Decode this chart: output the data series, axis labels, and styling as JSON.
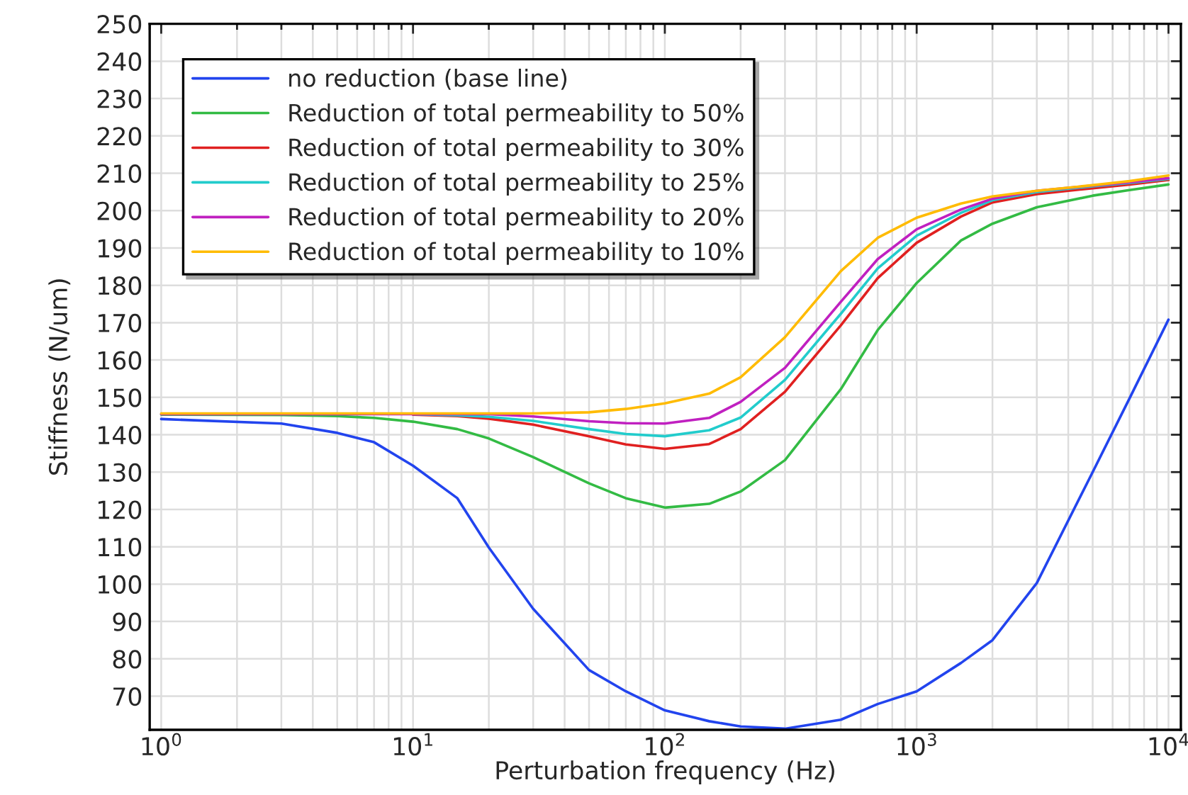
{
  "chart_data": {
    "type": "line",
    "xlabel": "Perturbation frequency (Hz)",
    "ylabel": "Stiffness (N/um)",
    "log": "x",
    "grid": true,
    "legend": "top left",
    "marker": "none",
    "line_style": "solid",
    "xlim": [
      0.9,
      11200
    ],
    "ylim": [
      61,
      250
    ],
    "xticks": [
      {
        "value": 1,
        "label": "10$^{0}$"
      },
      {
        "value": 10,
        "label": "10$^{1}$"
      },
      {
        "value": 100,
        "label": "10$^{2}$"
      },
      {
        "value": 1000,
        "label": "10$^{3}$"
      },
      {
        "value": 10000,
        "label": "10$^{4}$"
      }
    ],
    "yticks": [
      70,
      80,
      90,
      100,
      110,
      120,
      130,
      140,
      150,
      160,
      170,
      180,
      190,
      200,
      210,
      220,
      230,
      240,
      250
    ],
    "x": [
      1,
      3,
      5,
      7,
      10,
      15,
      20,
      30,
      50,
      70,
      100,
      150,
      200,
      300,
      500,
      700,
      1000,
      1500,
      2000,
      3000,
      5000,
      7000,
      10000
    ],
    "series": [
      {
        "name": "no reduction (base line)",
        "color": "#2244ee",
        "values": [
          144.2,
          143,
          140.5,
          138,
          131.7,
          123,
          109.8,
          93.4,
          77,
          71.3,
          66.2,
          63.3,
          61.9,
          61.3,
          63.7,
          67.9,
          71.3,
          78.9,
          85,
          100.3,
          130,
          149.7,
          170.8
        ]
      },
      {
        "name": "Reduction of total permeability to 50%",
        "color": "#33bb44",
        "values": [
          145.4,
          145.3,
          145,
          144.5,
          143.5,
          141.5,
          139,
          134,
          127,
          123,
          120.5,
          121.5,
          124.8,
          133.2,
          152.2,
          168,
          180.6,
          192,
          196.5,
          200.9,
          204,
          205.5,
          207
        ]
      },
      {
        "name": "Reduction of total permeability to 30%",
        "color": "#e02020",
        "values": [
          null,
          null,
          null,
          null,
          145.4,
          145,
          144.3,
          142.7,
          139.6,
          137.4,
          136.2,
          137.5,
          141.5,
          151.5,
          169.3,
          181.9,
          191.4,
          198.4,
          202.2,
          204.4,
          206,
          207,
          208.2
        ]
      },
      {
        "name": "Reduction of total permeability to 25%",
        "color": "#22cccc",
        "values": [
          null,
          null,
          null,
          null,
          145.5,
          145.2,
          144.8,
          143.7,
          141.5,
          140.2,
          139.6,
          141.2,
          144.6,
          154.7,
          172.4,
          184.5,
          193.3,
          199.4,
          202.8,
          205,
          206.5,
          207.4,
          208.5
        ]
      },
      {
        "name": "Reduction of total permeability to 20%",
        "color": "#c020c0",
        "values": [
          145.5,
          145.5,
          145.5,
          145.5,
          145.5,
          145.5,
          145.5,
          144.9,
          143.6,
          143.1,
          143,
          144.5,
          148.8,
          157.9,
          175.6,
          187,
          195,
          200.3,
          203.2,
          205.3,
          206.7,
          207.6,
          208.7
        ]
      },
      {
        "name": "Reduction of total permeability to 10%",
        "color": "#ffbb00",
        "values": [
          145.7,
          145.7,
          145.7,
          145.7,
          145.7,
          145.7,
          145.7,
          145.7,
          146,
          146.9,
          148.4,
          151,
          155.4,
          166.1,
          183.8,
          192.7,
          198.1,
          201.9,
          203.8,
          205.3,
          206.8,
          207.9,
          209.4
        ]
      }
    ]
  }
}
